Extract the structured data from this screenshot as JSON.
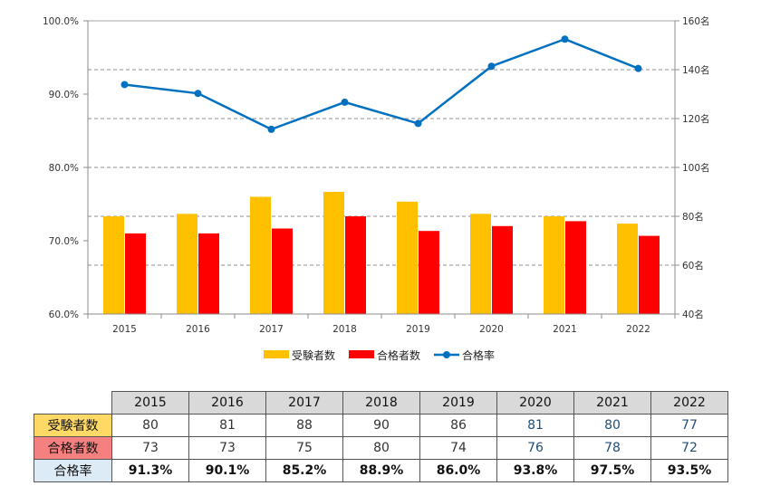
{
  "chart_data": {
    "type": "bar+line",
    "categories": [
      "2015",
      "2016",
      "2017",
      "2018",
      "2019",
      "2020",
      "2021",
      "2022"
    ],
    "series": [
      {
        "name": "受験者数",
        "type": "bar",
        "axis": "right",
        "color": "#FFC000",
        "values": [
          80,
          81,
          88,
          90,
          86,
          81,
          80,
          77
        ]
      },
      {
        "name": "合格者数",
        "type": "bar",
        "axis": "right",
        "color": "#FF0000",
        "values": [
          73,
          73,
          75,
          80,
          74,
          76,
          78,
          72
        ]
      },
      {
        "name": "合格率",
        "type": "line",
        "axis": "left",
        "color": "#0070C0",
        "values": [
          91.3,
          90.1,
          85.2,
          88.9,
          86.0,
          93.8,
          97.5,
          93.5
        ]
      }
    ],
    "y_left": {
      "min": 60,
      "max": 100,
      "ticks": [
        "60.0%",
        "70.0%",
        "80.0%",
        "90.0%",
        "100.0%"
      ]
    },
    "y_right": {
      "min": 40,
      "max": 160,
      "ticks": [
        "40名",
        "60名",
        "80名",
        "100名",
        "120名",
        "140名",
        "160名"
      ]
    },
    "grid": "dashed horizontal at right-axis ticks",
    "legend": "bottom"
  },
  "table": {
    "header": [
      "2015",
      "2016",
      "2017",
      "2018",
      "2019",
      "2020",
      "2021",
      "2022"
    ],
    "rows": [
      {
        "label": "受験者数",
        "color": "#FFD966",
        "values": [
          "80",
          "81",
          "88",
          "90",
          "86",
          "81",
          "80",
          "77"
        ]
      },
      {
        "label": "合格者数",
        "color": "#F4817F",
        "values": [
          "73",
          "73",
          "75",
          "80",
          "74",
          "76",
          "78",
          "72"
        ]
      },
      {
        "label": "合格率",
        "color": "#DDEBF7",
        "values": [
          "91.3%",
          "90.1%",
          "85.2%",
          "88.9%",
          "86.0%",
          "93.8%",
          "97.5%",
          "93.5%"
        ]
      }
    ]
  }
}
